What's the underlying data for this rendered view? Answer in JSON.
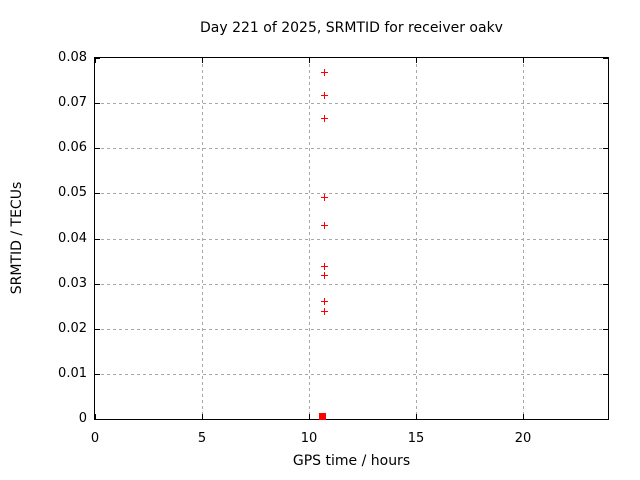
{
  "chart_data": {
    "type": "scatter",
    "title": "Day 221 of 2025, SRMTID for receiver oakv",
    "xlabel": "GPS time / hours",
    "ylabel": "SRMTID / TECUs",
    "xlim": [
      0,
      24
    ],
    "ylim": [
      0,
      0.08
    ],
    "grid": true,
    "legend": "none",
    "background_color": "#ffffff",
    "border_color": "#000000",
    "grid_color": "#a8a8a8",
    "xticks": {
      "values": [
        0,
        5,
        10,
        15,
        20
      ],
      "labels": [
        "0",
        "5",
        "10",
        "15",
        "20"
      ]
    },
    "yticks": {
      "values": [
        0,
        0.01,
        0.02,
        0.03,
        0.04,
        0.05,
        0.06,
        0.07,
        0.08
      ],
      "labels": [
        "0",
        "0.01",
        "0.02",
        "0.03",
        "0.04",
        "0.05",
        "0.06",
        "0.07",
        "0.08"
      ]
    },
    "series": [
      {
        "name": "srmtid-values",
        "marker": "plus",
        "color": "#ff0000",
        "points": [
          {
            "x": 10.72,
            "y": 0.0769
          },
          {
            "x": 10.72,
            "y": 0.0718
          },
          {
            "x": 10.72,
            "y": 0.0668
          },
          {
            "x": 10.72,
            "y": 0.0491
          },
          {
            "x": 10.72,
            "y": 0.0429
          },
          {
            "x": 10.72,
            "y": 0.0339
          },
          {
            "x": 10.72,
            "y": 0.0319
          },
          {
            "x": 10.72,
            "y": 0.0262
          },
          {
            "x": 10.72,
            "y": 0.024
          }
        ]
      },
      {
        "name": "baseline-marker",
        "marker": "filled-square",
        "color": "#ff0000",
        "points": [
          {
            "x": 10.62,
            "y": 0.0006
          }
        ]
      }
    ]
  }
}
